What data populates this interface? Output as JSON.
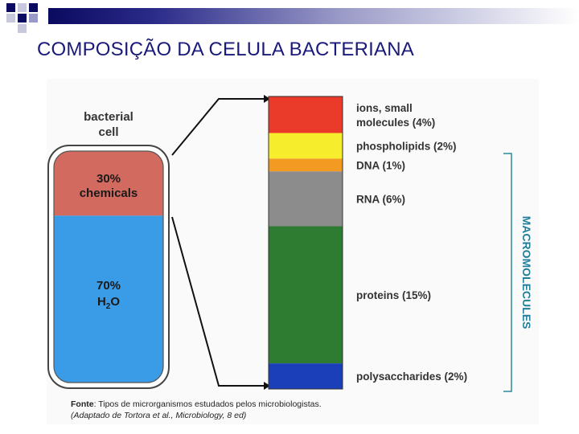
{
  "title": "COMPOSIÇÃO DA CELULA BACTERIANA",
  "cell": {
    "label_line1": "bacterial",
    "label_line2": "cell",
    "chemicals_pct": "30%",
    "chemicals_label": "chemicals",
    "water_pct": "70%",
    "water_label": "H",
    "water_sub": "2",
    "water_label_end": "O",
    "chemicals_fraction": 0.3
  },
  "composition": [
    {
      "key": "ions",
      "label_line1": "ions, small",
      "label_line2": "molecules (4%)",
      "percent": 4,
      "color": "#ea3a2a"
    },
    {
      "key": "phospholipids",
      "label_line1": "phospholipids (2%)",
      "percent": 2,
      "color": "#f6ee2c"
    },
    {
      "key": "dna",
      "label_line1": "DNA (1%)",
      "percent": 1,
      "color": "#f29a22"
    },
    {
      "key": "rna",
      "label_line1": "RNA (6%)",
      "percent": 6,
      "color": "#8c8c8c"
    },
    {
      "key": "proteins",
      "label_line1": "proteins (15%)",
      "percent": 15,
      "color": "#2e7b32"
    },
    {
      "key": "polysaccharides",
      "label_line1": "polysaccharides (2%)",
      "percent": 2,
      "color": "#1a3fb8"
    }
  ],
  "macromolecules_label": "MACROMOLECULES",
  "colors": {
    "chemicals": "#d26a60",
    "water": "#3a9be6",
    "bracket": "#2a8a9a",
    "macro_text": "#1f7f9a",
    "title": "#1a1a7a"
  },
  "caption": {
    "fonte_label": "Fonte",
    "line1_rest": ": Tipos de microrganismos  estudados pelos microbiologistas.",
    "line2": " (Adaptado de Tortora et al., Microbiology, 8 ed)"
  }
}
